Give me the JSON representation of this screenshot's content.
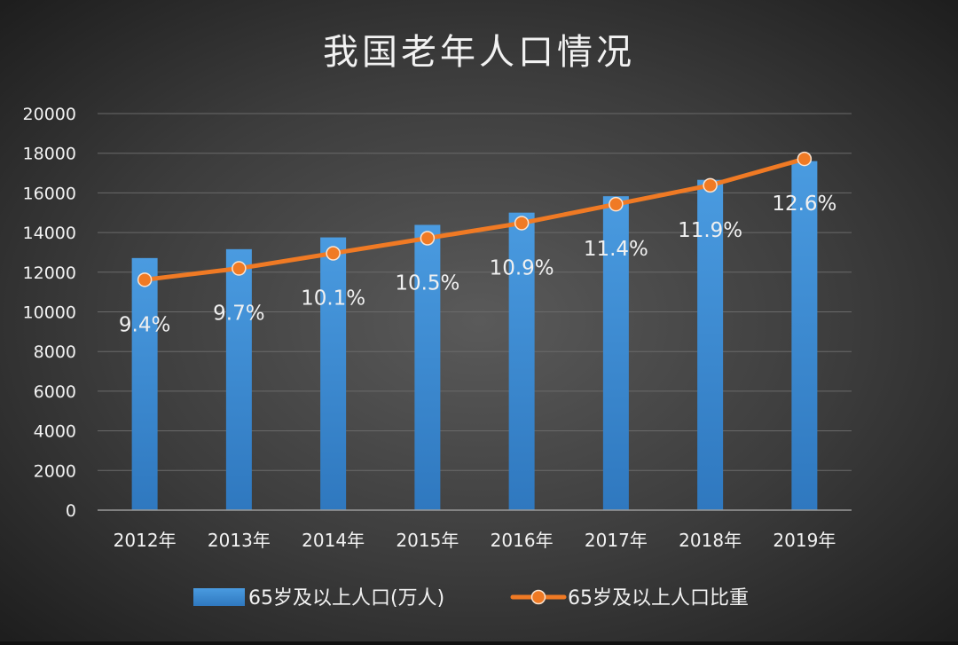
{
  "colors": {
    "bar": "#3d8fd6",
    "line": "#f07a24",
    "axis_text": "#f2f2f2",
    "gridline": "#6a6a6a",
    "label_text": "#f0f0f0"
  },
  "chart_data": {
    "type": "bar",
    "title": "我国老年人口情况",
    "categories": [
      "2012年",
      "2013年",
      "2014年",
      "2015年",
      "2016年",
      "2017年",
      "2018年",
      "2019年"
    ],
    "ylim": [
      0,
      20000
    ],
    "yticks": [
      0,
      2000,
      4000,
      6000,
      8000,
      10000,
      12000,
      14000,
      16000,
      18000,
      20000
    ],
    "grid": true,
    "legend_position": "bottom",
    "series": [
      {
        "name": "65岁及以上人口(万人)",
        "type": "bar",
        "values": [
          12714,
          13161,
          13755,
          14386,
          15003,
          15831,
          16658,
          17603
        ]
      },
      {
        "name": "65岁及以上人口比重",
        "type": "line",
        "values": [
          9.4,
          9.7,
          10.1,
          10.5,
          10.9,
          11.4,
          11.9,
          12.6
        ],
        "labels": [
          "9.4%",
          "9.7%",
          "10.1%",
          "10.5%",
          "10.9%",
          "11.4%",
          "11.9%",
          "12.6%"
        ]
      }
    ]
  }
}
